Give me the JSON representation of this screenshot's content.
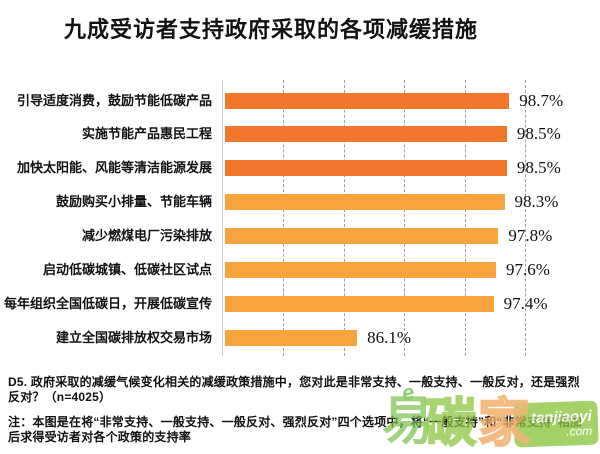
{
  "title": "九成受访者支持政府采取的各项减缓措施",
  "chart_data": {
    "type": "bar",
    "orientation": "horizontal",
    "title": "九成受访者支持政府采取的各项减缓措施",
    "categories": [
      "引导适度消费，鼓励节能低碳产品",
      "实施节能产品惠民工程",
      "加快太阳能、风能等清洁能源发展",
      "鼓励购买小排量、节能车辆",
      "减少燃煤电厂污染排放",
      "启动低碳城镇、低碳社区试点",
      "每年组织全国低碳日，开展低碳宣传",
      "建立全国碳排放权交易市场"
    ],
    "values": [
      98.7,
      98.5,
      98.5,
      98.3,
      97.8,
      97.6,
      97.4,
      86.1
    ],
    "value_labels": [
      "98.7%",
      "98.5%",
      "98.5%",
      "98.3%",
      "97.8%",
      "97.6%",
      "97.4%",
      "86.1%"
    ],
    "xlim": [
      75,
      100
    ],
    "grid_values": [
      80,
      85,
      90,
      95,
      100
    ],
    "grid_style": "dashed",
    "legend": "none",
    "bar_colors": [
      "#f0772b",
      "#f0772b",
      "#f0772b",
      "#f8a43e",
      "#f8a43e",
      "#f8a43e",
      "#f8a43e",
      "#f8a43e"
    ]
  },
  "footnote": {
    "question": "D5. 政府采取的减缓气候变化相关的减缓政策措施中，您对此是非常支持、一般支持、一般反对，还是强烈反对？（n=4025）",
    "note": "注：本图是在将“非常支持、一般支持、一般反对、强烈反对”四个选项中，将“一般支持”和“非常支持”相加后求得受访者对各个政策的支持率"
  },
  "watermark": {
    "swirl": "e",
    "char_yi": "易",
    "char_tan": "碳",
    "char_jia": "家",
    "badge_line1": "tanjiaoyi",
    "badge_line2": ".com",
    "green": "#8cc63f",
    "orange": "#f0a860"
  }
}
